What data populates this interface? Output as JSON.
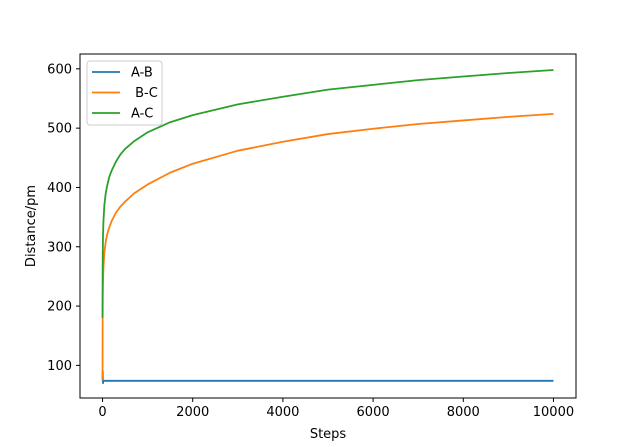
{
  "chart_data": {
    "type": "line",
    "title": "",
    "xlabel": "Steps",
    "ylabel": "Distance/pm",
    "xlim": [
      -500,
      10500
    ],
    "ylim": [
      45,
      625
    ],
    "xticks": [
      0,
      2000,
      4000,
      6000,
      8000,
      10000
    ],
    "yticks": [
      100,
      200,
      300,
      400,
      500,
      600
    ],
    "grid": false,
    "legend": {
      "placement": "top-left",
      "entries": [
        "A-B",
        " B-C",
        "A-C"
      ]
    },
    "series": [
      {
        "name": "A-B",
        "color": "#1f77b4",
        "x": [
          0,
          5,
          10,
          20,
          40,
          100,
          500,
          1000,
          2000,
          4000,
          6000,
          8000,
          10000
        ],
        "y": [
          75,
          90,
          70,
          74,
          74,
          74,
          74,
          74,
          74,
          74,
          74,
          74,
          74
        ]
      },
      {
        "name": " B-C",
        "color": "#ff7f0e",
        "x": [
          0,
          2,
          5,
          10,
          20,
          40,
          70,
          100,
          150,
          200,
          300,
          400,
          500,
          700,
          1000,
          1500,
          2000,
          3000,
          4000,
          5000,
          6000,
          7000,
          8000,
          9000,
          10000
        ],
        "y": [
          75,
          180,
          215,
          240,
          265,
          290,
          308,
          320,
          333,
          343,
          358,
          368,
          376,
          390,
          405,
          425,
          440,
          462,
          477,
          490,
          499,
          507,
          513,
          519,
          524
        ]
      },
      {
        "name": "A-C",
        "color": "#2ca02c",
        "x": [
          0,
          2,
          5,
          10,
          20,
          40,
          70,
          100,
          150,
          200,
          300,
          400,
          500,
          700,
          1000,
          1500,
          2000,
          3000,
          4000,
          5000,
          6000,
          7000,
          8000,
          9000,
          10000
        ],
        "y": [
          180,
          255,
          288,
          318,
          343,
          370,
          390,
          402,
          418,
          428,
          444,
          456,
          465,
          478,
          493,
          510,
          522,
          540,
          553,
          565,
          573,
          581,
          587,
          593,
          598
        ]
      }
    ]
  }
}
